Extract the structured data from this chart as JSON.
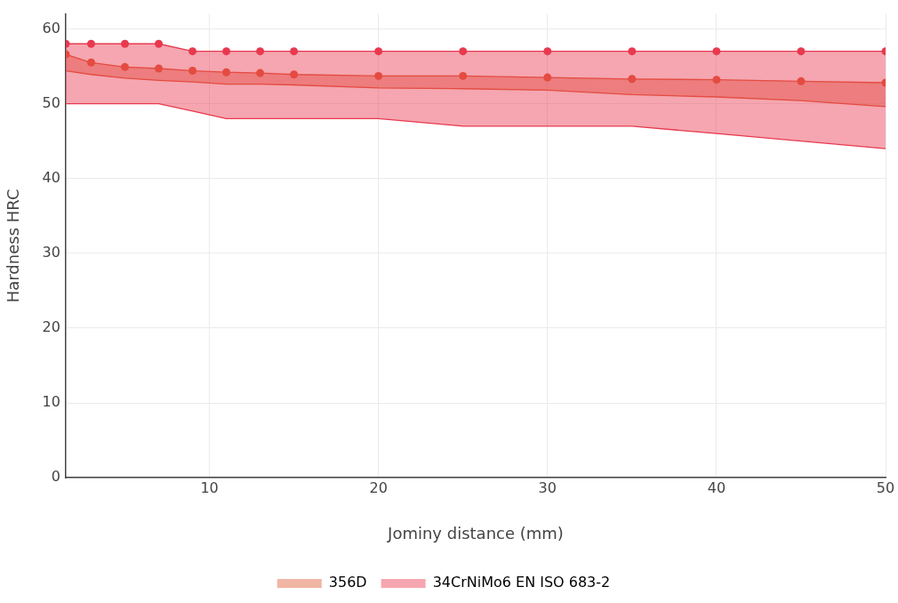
{
  "chart_data": {
    "type": "area",
    "xlabel": "Jominy distance (mm)",
    "ylabel": "Hardness HRC",
    "x": [
      1.5,
      3,
      5,
      7,
      9,
      11,
      13,
      15,
      20,
      25,
      30,
      35,
      40,
      45,
      50
    ],
    "series": [
      {
        "type": "line",
        "marker": "none",
        "color": "#e05a35",
        "values": [
          54.4,
          53.9,
          53.4,
          53.1,
          52.9,
          52.6,
          52.6,
          52.5,
          52.1,
          52.0,
          51.8,
          51.2,
          50.9,
          50.4,
          49.6
        ]
      },
      {
        "name": "356D",
        "color": "#e05a35",
        "values": [
          56.6,
          55.5,
          54.9,
          54.7,
          54.4,
          54.2,
          54.1,
          53.9,
          53.7,
          53.7,
          53.5,
          53.3,
          53.2,
          53.0,
          52.8
        ]
      },
      {
        "type": "line",
        "marker": "none",
        "color": "#e8394f",
        "values": [
          50,
          50,
          50,
          50,
          49,
          48,
          48,
          48,
          48,
          47,
          47,
          47,
          46,
          45,
          44
        ]
      },
      {
        "name": "34CrNiMo6 EN ISO 683-2",
        "color": "#e8394f",
        "values": [
          58,
          58,
          58,
          58,
          57,
          57,
          57,
          57,
          57,
          57,
          57,
          57,
          57,
          57,
          57
        ]
      }
    ],
    "xlim": [
      1.5,
      50
    ],
    "xticks": [
      10,
      20,
      30,
      40,
      50
    ],
    "ylim": [
      0,
      62
    ],
    "yticks": [
      0,
      10,
      20,
      30,
      40,
      50,
      60
    ],
    "grid": true,
    "legend": "bottom",
    "marker": "circle"
  }
}
